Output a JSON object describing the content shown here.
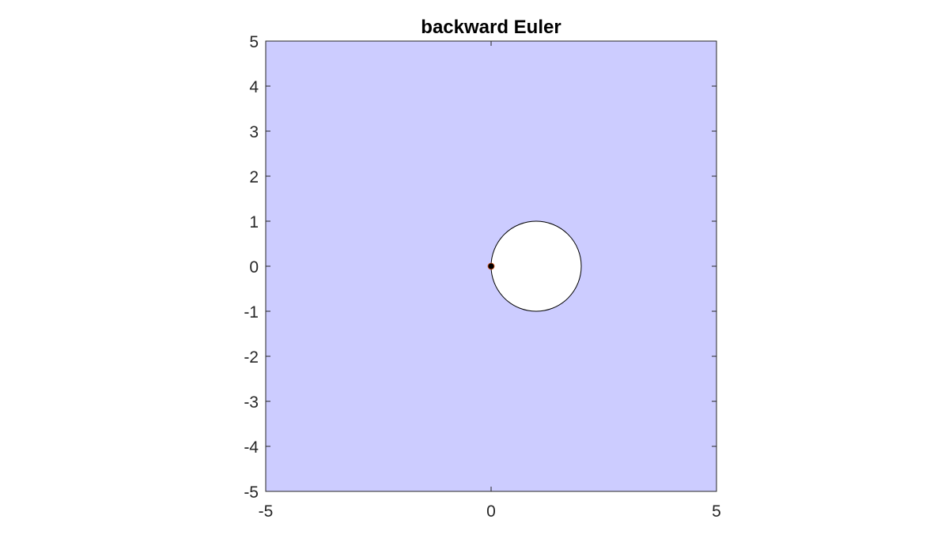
{
  "chart_data": {
    "type": "area",
    "title": "backward Euler",
    "xlabel": "",
    "ylabel": "",
    "xlim": [
      -5,
      5
    ],
    "ylim": [
      -5,
      5
    ],
    "x_ticks": [
      -5,
      0,
      5
    ],
    "y_ticks": [
      -5,
      -4,
      -3,
      -2,
      -1,
      0,
      1,
      2,
      3,
      4,
      5
    ],
    "grid": false,
    "region": {
      "description_fill_color": "#ccccff",
      "excluded_disk": {
        "center": [
          1,
          0
        ],
        "radius": 1,
        "fill_color": "#ffffff"
      }
    },
    "points": [
      {
        "x": 0,
        "y": 0,
        "color": "#000000"
      }
    ]
  }
}
